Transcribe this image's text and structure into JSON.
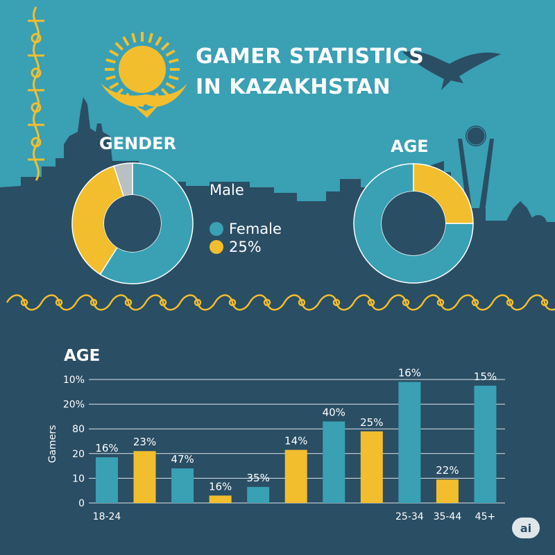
{
  "title_lines": [
    "GAMER STATISTICS",
    "IN KAZAKHSTAN"
  ],
  "colors": {
    "teal": "#3aa0b4",
    "yellow": "#f2be2e",
    "navy": "#2a4e64",
    "gray": "#b8c0c4"
  },
  "gender": {
    "heading": "GENDER",
    "legend": [
      {
        "label": "Male",
        "color": ""
      },
      {
        "label": "Female",
        "color": "#3aa0b4"
      },
      {
        "label": "25%",
        "color": "#f2be2e"
      }
    ]
  },
  "age_donut": {
    "heading": "AGE"
  },
  "bar_chart": {
    "heading": "AGE",
    "ylabel": "Gamers"
  },
  "badge": "ai",
  "chart_data": [
    {
      "type": "pie",
      "title": "GENDER",
      "slices": [
        {
          "name": "teal",
          "value": 59,
          "color": "#3aa0b4"
        },
        {
          "name": "yellow",
          "value": 36,
          "color": "#f2be2e"
        },
        {
          "name": "gray",
          "value": 5,
          "color": "#b8c0c4"
        }
      ]
    },
    {
      "type": "pie",
      "title": "AGE",
      "slices": [
        {
          "name": "teal",
          "value": 75,
          "color": "#3aa0b4"
        },
        {
          "name": "yellow",
          "value": 25,
          "color": "#f2be2e"
        }
      ]
    },
    {
      "type": "bar",
      "title": "AGE",
      "ylabel": "Gamers",
      "y_tick_labels": [
        "0",
        "10",
        "20",
        "80",
        "20%",
        "10%"
      ],
      "x_tick_labels": [
        "18-24",
        "",
        "",
        "",
        "",
        "",
        "",
        "",
        "25-34",
        "35-44",
        "45+"
      ],
      "values": [
        1.85,
        2.1,
        1.4,
        0.3,
        0.65,
        2.15,
        3.3,
        2.9,
        4.9,
        0.95,
        4.75
      ],
      "data_labels": [
        "16%",
        "23%",
        "47%",
        "16%",
        "35%",
        "14%",
        "40%",
        "25%",
        "16%",
        "22%",
        "15%"
      ],
      "bar_colors": [
        "#3aa0b4",
        "#f2be2e",
        "#3aa0b4",
        "#f2be2e",
        "#3aa0b4",
        "#f2be2e",
        "#3aa0b4",
        "#f2be2e",
        "#3aa0b4",
        "#f2be2e",
        "#3aa0b4"
      ],
      "ylim": [
        0,
        5
      ],
      "grid": true
    }
  ]
}
